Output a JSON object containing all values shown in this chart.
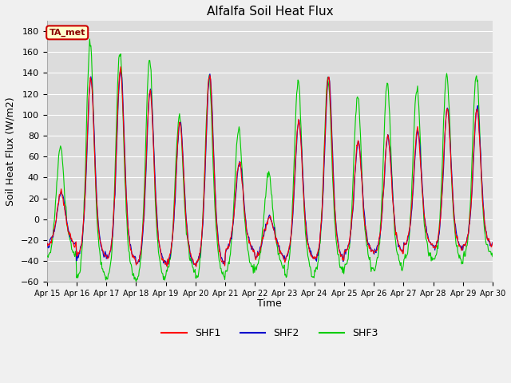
{
  "title": "Alfalfa Soil Heat Flux",
  "ylabel": "Soil Heat Flux (W/m2)",
  "xlabel": "Time",
  "ylim": [
    -60,
    190
  ],
  "yticks": [
    -60,
    -40,
    -20,
    0,
    20,
    40,
    60,
    80,
    100,
    120,
    140,
    160,
    180
  ],
  "colors": {
    "SHF1": "#ff0000",
    "SHF2": "#0000cc",
    "SHF3": "#00cc00",
    "plot_bg": "#dcdcdc",
    "fig_bg": "#f0f0f0",
    "annotation_bg": "#ffffcc",
    "annotation_border": "#cc0000",
    "grid": "#ffffff"
  },
  "annotation_text": "TA_met",
  "linewidth": 0.8,
  "n_days": 15,
  "pts_per_day": 48,
  "day_peaks_shf12": [
    30,
    140,
    150,
    130,
    100,
    145,
    60,
    8,
    100,
    143,
    80,
    85,
    90,
    110,
    110
  ],
  "day_peaks_shf3": [
    75,
    180,
    172,
    165,
    108,
    145,
    95,
    53,
    143,
    143,
    128,
    140,
    132,
    147,
    147
  ],
  "day_troughs_shf12": [
    -25,
    -35,
    -38,
    -42,
    -43,
    -43,
    -30,
    -37,
    -37,
    -38,
    -32,
    -32,
    -25,
    -28,
    -25
  ],
  "day_troughs_shf3": [
    -35,
    -55,
    -58,
    -58,
    -50,
    -57,
    -50,
    -47,
    -55,
    -50,
    -48,
    -48,
    -38,
    -40,
    -35
  ]
}
